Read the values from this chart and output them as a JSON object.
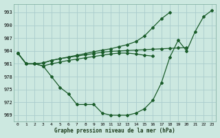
{
  "background_color": "#cce8e0",
  "grid_color": "#aacccc",
  "line_color": "#1a5c2a",
  "title": "Graphe pression niveau de la mer (hPa)",
  "ylabel_ticks": [
    969,
    972,
    975,
    978,
    981,
    984,
    987,
    990,
    993
  ],
  "xlim": [
    -0.5,
    23.5
  ],
  "ylim": [
    967.5,
    995.0
  ],
  "line1_x": [
    0,
    1,
    2,
    3,
    4,
    5,
    6,
    7,
    8,
    9,
    10,
    11,
    12,
    13,
    14,
    15,
    16,
    17,
    18,
    19,
    20,
    21,
    22,
    23
  ],
  "line1_y": [
    983.5,
    981.0,
    981.0,
    980.5,
    978.0,
    975.5,
    974.0,
    971.5,
    971.5,
    971.5,
    969.5,
    969.0,
    969.0,
    969.0,
    969.5,
    970.5,
    972.5,
    976.5,
    982.5,
    986.5,
    984.0,
    988.5,
    992.0,
    993.5
  ],
  "line2_x": [
    0,
    1,
    2,
    3,
    4,
    5,
    6,
    7,
    8,
    9,
    10,
    11,
    12,
    13,
    14,
    15,
    16,
    17,
    18,
    19,
    20
  ],
  "line2_y": [
    983.5,
    981.0,
    981.0,
    981.2,
    981.8,
    982.2,
    982.5,
    982.8,
    983.1,
    983.4,
    983.7,
    983.9,
    984.0,
    984.1,
    984.2,
    984.3,
    984.4,
    984.5,
    984.6,
    984.7,
    984.8
  ],
  "line3_x": [
    0,
    1,
    2,
    3,
    4,
    5,
    6,
    7,
    8,
    9,
    10,
    11,
    12,
    13,
    14,
    15,
    16,
    17,
    18
  ],
  "line3_y": [
    983.5,
    981.0,
    981.0,
    981.2,
    981.8,
    982.2,
    982.6,
    983.0,
    983.4,
    983.8,
    984.2,
    984.5,
    985.0,
    985.5,
    986.2,
    987.5,
    989.5,
    991.5,
    993.0
  ],
  "line4_x": [
    0,
    1,
    2,
    3,
    4,
    5,
    6,
    7,
    8,
    9,
    10,
    11,
    12,
    13,
    14,
    15,
    16
  ],
  "line4_y": [
    983.5,
    981.0,
    981.0,
    980.5,
    981.0,
    981.4,
    981.8,
    982.1,
    982.4,
    982.7,
    983.0,
    983.3,
    983.5,
    983.5,
    983.3,
    983.0,
    982.8
  ]
}
